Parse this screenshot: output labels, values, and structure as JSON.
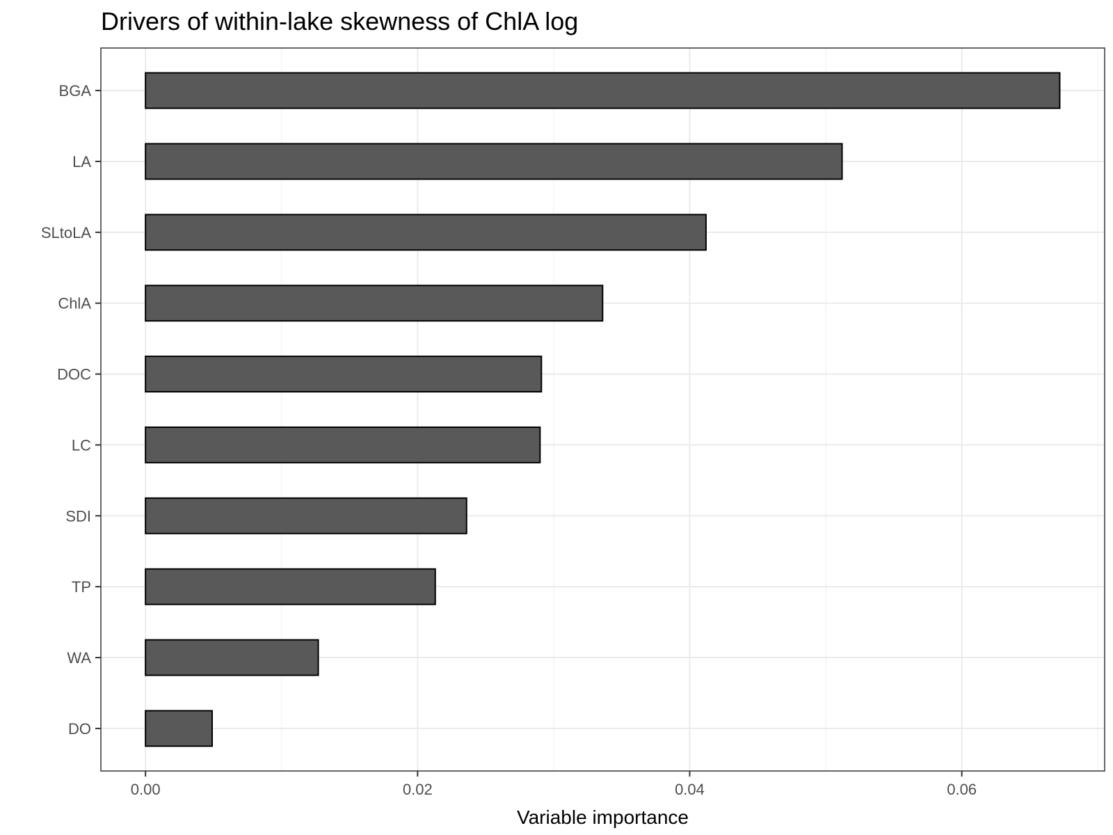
{
  "chart_data": {
    "type": "bar",
    "orientation": "horizontal",
    "title": "Drivers of within-lake skewness of ChlA log",
    "xlabel": "Variable importance",
    "ylabel": "",
    "categories": [
      "BGA",
      "LA",
      "SLtoLA",
      "ChlA",
      "DOC",
      "LC",
      "SDI",
      "TP",
      "WA",
      "DO"
    ],
    "values": [
      0.0672,
      0.0512,
      0.0412,
      0.0336,
      0.0291,
      0.029,
      0.0236,
      0.0213,
      0.0127,
      0.0049
    ],
    "xlim": [
      -0.00328,
      0.0705
    ],
    "xticks": [
      0.0,
      0.02,
      0.04,
      0.06
    ],
    "xtick_labels": [
      "0.00",
      "0.02",
      "0.04",
      "0.06"
    ],
    "grid": true,
    "bar_color": "#595959",
    "bar_outline": "#000000"
  }
}
